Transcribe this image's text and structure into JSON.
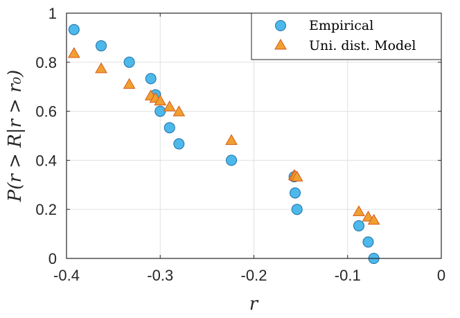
{
  "chart_data": {
    "type": "scatter",
    "xlabel": "r",
    "ylabel": "P(r > R|r > r₀)",
    "xlim": [
      -0.4,
      0
    ],
    "ylim": [
      0,
      1
    ],
    "xticks": [
      "-0.4",
      "-0.3",
      "-0.2",
      "-0.1",
      "0"
    ],
    "yticks": [
      "0",
      "0.2",
      "0.4",
      "0.6",
      "0.8",
      "1"
    ],
    "grid": true,
    "legend_position": "top-right",
    "series": [
      {
        "name": "Empirical",
        "marker": "circle",
        "color": "#4db8ea",
        "edge_color": "#1a6fa8",
        "x": [
          -0.392,
          -0.363,
          -0.333,
          -0.31,
          -0.305,
          -0.3,
          -0.29,
          -0.28,
          -0.224,
          -0.157,
          -0.156,
          -0.154,
          -0.088,
          -0.078,
          -0.072
        ],
        "y": [
          0.933,
          0.867,
          0.8,
          0.733,
          0.667,
          0.6,
          0.533,
          0.467,
          0.4,
          0.333,
          0.267,
          0.2,
          0.133,
          0.067,
          0.0
        ]
      },
      {
        "name": "Uni. dist. Model",
        "marker": "triangle",
        "color": "#f0a030",
        "edge_color": "#d45a1a",
        "x": [
          -0.392,
          -0.363,
          -0.333,
          -0.31,
          -0.305,
          -0.3,
          -0.29,
          -0.28,
          -0.224,
          -0.157,
          -0.156,
          -0.154,
          -0.088,
          -0.078,
          -0.072
        ],
        "y": [
          0.835,
          0.773,
          0.709,
          0.662,
          0.652,
          0.641,
          0.617,
          0.597,
          0.48,
          0.337,
          0.335,
          0.331,
          0.19,
          0.168,
          0.155
        ]
      }
    ]
  }
}
